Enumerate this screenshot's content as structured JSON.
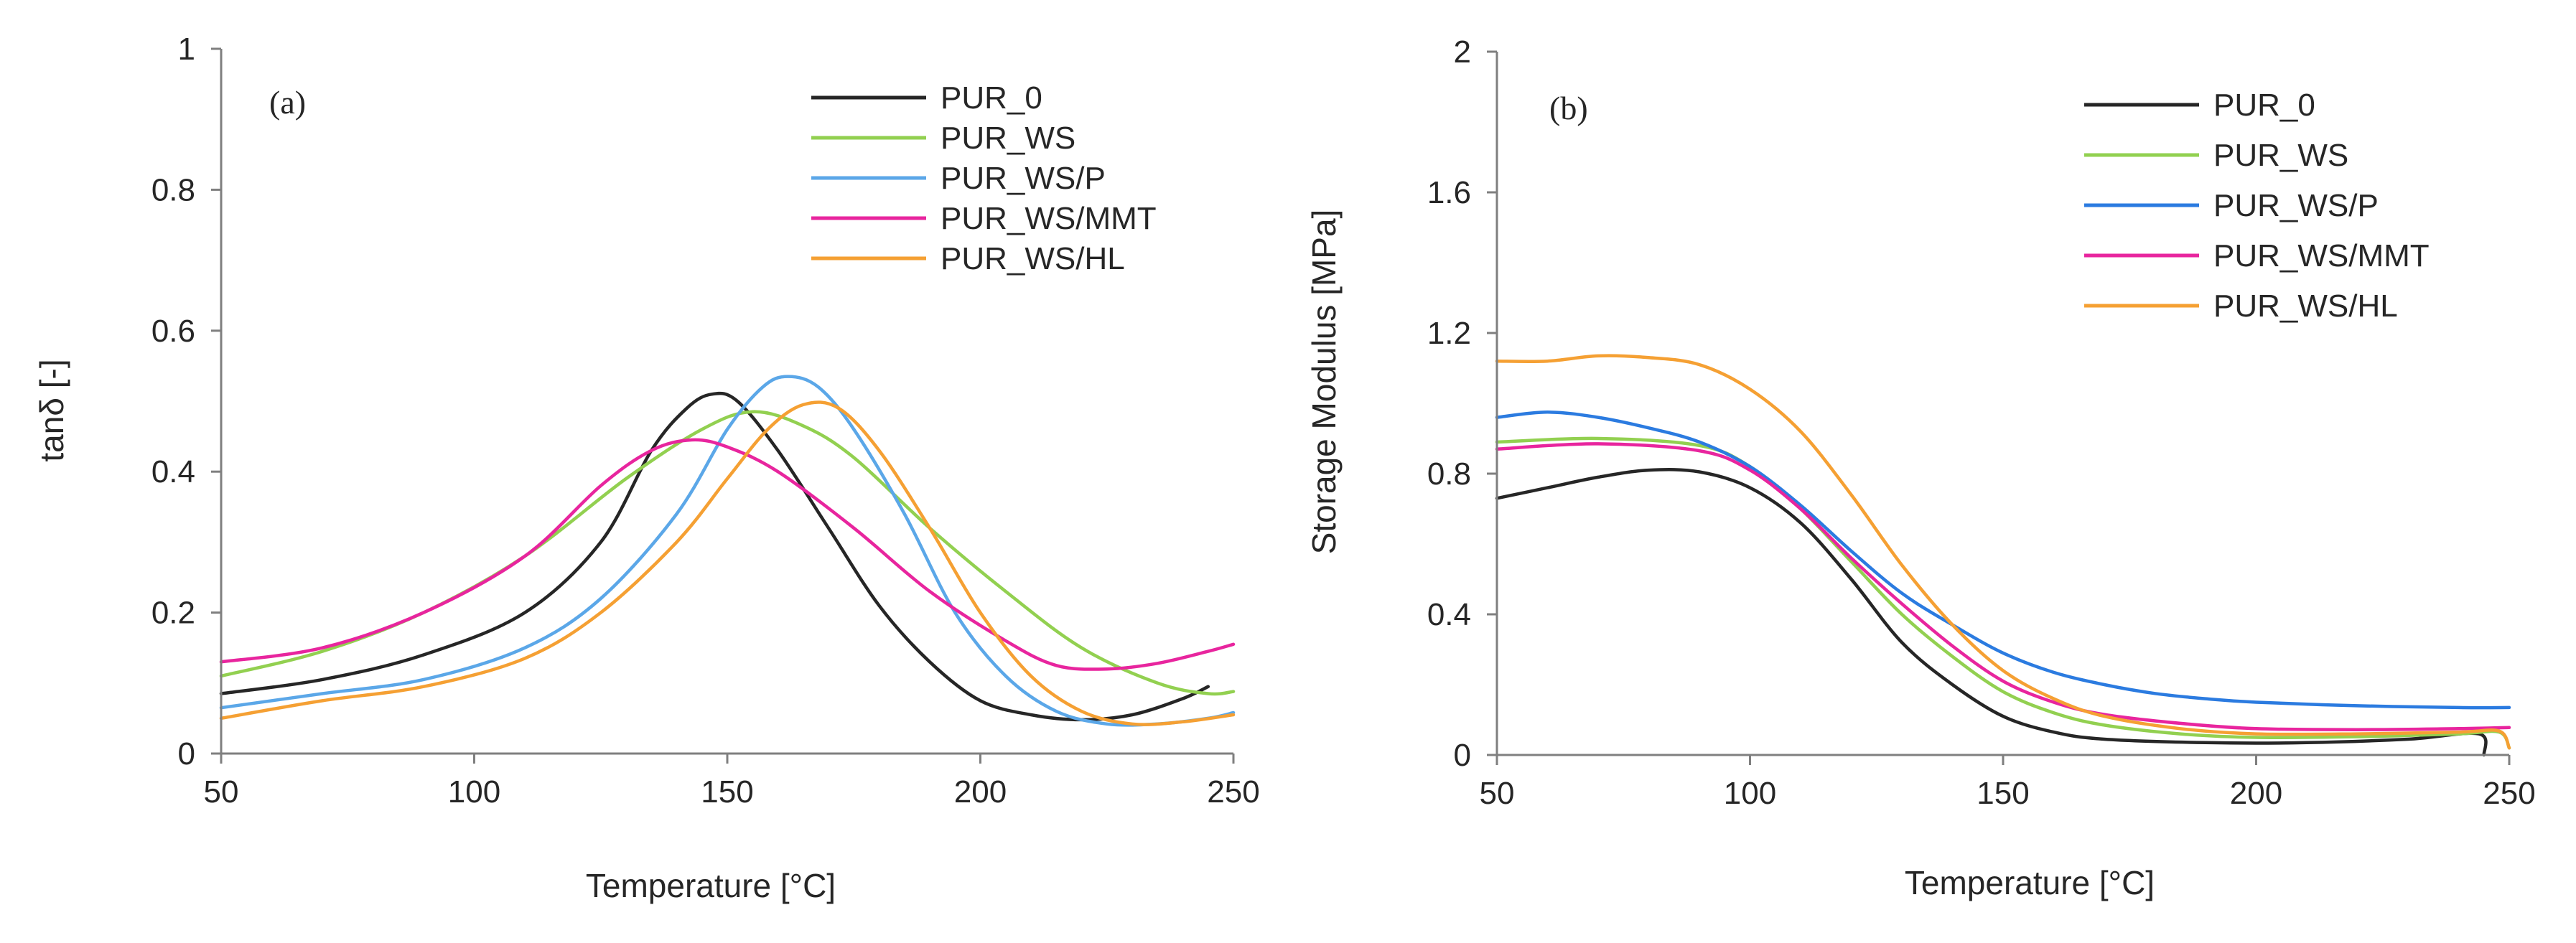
{
  "chart_data": [
    {
      "type": "line",
      "panel_label": "(a)",
      "title": "",
      "xlabel": "Temperature [°C]",
      "ylabel": "tanδ [-]",
      "xlim": [
        50,
        250
      ],
      "ylim": [
        0,
        1
      ],
      "x_ticks": [
        "50",
        "100",
        "150",
        "200",
        "250"
      ],
      "y_ticks": [
        "0",
        "0.2",
        "0.4",
        "0.6",
        "0.8",
        "1"
      ],
      "grid": false,
      "legend_position": "top-right",
      "series": [
        {
          "name": "PUR_0",
          "color": "#262626",
          "points": [
            [
              50,
              0.085
            ],
            [
              70,
              0.105
            ],
            [
              90,
              0.14
            ],
            [
              110,
              0.2
            ],
            [
              125,
              0.3
            ],
            [
              135,
              0.43
            ],
            [
              142,
              0.49
            ],
            [
              147,
              0.51
            ],
            [
              152,
              0.5
            ],
            [
              160,
              0.43
            ],
            [
              170,
              0.32
            ],
            [
              180,
              0.21
            ],
            [
              190,
              0.13
            ],
            [
              200,
              0.075
            ],
            [
              210,
              0.055
            ],
            [
              220,
              0.048
            ],
            [
              230,
              0.055
            ],
            [
              240,
              0.078
            ],
            [
              245,
              0.095
            ]
          ]
        },
        {
          "name": "PUR_WS",
          "color": "#92D050",
          "points": [
            [
              50,
              0.11
            ],
            [
              70,
              0.145
            ],
            [
              90,
              0.2
            ],
            [
              110,
              0.28
            ],
            [
              130,
              0.39
            ],
            [
              145,
              0.46
            ],
            [
              155,
              0.485
            ],
            [
              165,
              0.465
            ],
            [
              175,
              0.42
            ],
            [
              190,
              0.32
            ],
            [
              205,
              0.23
            ],
            [
              220,
              0.15
            ],
            [
              235,
              0.1
            ],
            [
              245,
              0.085
            ],
            [
              250,
              0.088
            ]
          ]
        },
        {
          "name": "PUR_WS/P",
          "color": "#5BA7E8",
          "points": [
            [
              50,
              0.065
            ],
            [
              70,
              0.085
            ],
            [
              90,
              0.105
            ],
            [
              110,
              0.15
            ],
            [
              125,
              0.22
            ],
            [
              140,
              0.34
            ],
            [
              150,
              0.46
            ],
            [
              157,
              0.52
            ],
            [
              162,
              0.535
            ],
            [
              168,
              0.52
            ],
            [
              175,
              0.46
            ],
            [
              185,
              0.34
            ],
            [
              195,
              0.2
            ],
            [
              205,
              0.11
            ],
            [
              215,
              0.06
            ],
            [
              225,
              0.042
            ],
            [
              235,
              0.042
            ],
            [
              245,
              0.05
            ],
            [
              250,
              0.058
            ]
          ]
        },
        {
          "name": "PUR_WS/MMT",
          "color": "#E8259E",
          "points": [
            [
              50,
              0.13
            ],
            [
              70,
              0.15
            ],
            [
              90,
              0.2
            ],
            [
              110,
              0.28
            ],
            [
              125,
              0.38
            ],
            [
              135,
              0.43
            ],
            [
              143,
              0.445
            ],
            [
              150,
              0.435
            ],
            [
              160,
              0.4
            ],
            [
              175,
              0.32
            ],
            [
              190,
              0.23
            ],
            [
              205,
              0.16
            ],
            [
              215,
              0.125
            ],
            [
              225,
              0.12
            ],
            [
              235,
              0.128
            ],
            [
              245,
              0.145
            ],
            [
              250,
              0.155
            ]
          ]
        },
        {
          "name": "PUR_WS/HL",
          "color": "#F5A033",
          "points": [
            [
              50,
              0.05
            ],
            [
              70,
              0.075
            ],
            [
              90,
              0.095
            ],
            [
              110,
              0.135
            ],
            [
              125,
              0.2
            ],
            [
              140,
              0.3
            ],
            [
              150,
              0.39
            ],
            [
              158,
              0.46
            ],
            [
              165,
              0.495
            ],
            [
              172,
              0.49
            ],
            [
              180,
              0.43
            ],
            [
              190,
              0.32
            ],
            [
              200,
              0.2
            ],
            [
              210,
              0.11
            ],
            [
              220,
              0.06
            ],
            [
              230,
              0.042
            ],
            [
              240,
              0.045
            ],
            [
              250,
              0.055
            ]
          ]
        }
      ]
    },
    {
      "type": "line",
      "panel_label": "(b)",
      "title": "",
      "xlabel": "Temperature [°C]",
      "ylabel": "Storage Modulus [MPa]",
      "xlim": [
        50,
        250
      ],
      "ylim": [
        0,
        2
      ],
      "x_ticks": [
        "50",
        "100",
        "150",
        "200",
        "250"
      ],
      "y_ticks": [
        "0",
        "0.4",
        "0.8",
        "1.2",
        "1.6",
        "2"
      ],
      "grid": false,
      "legend_position": "top-right",
      "series": [
        {
          "name": "PUR_0",
          "color": "#262626",
          "points": [
            [
              50,
              0.73
            ],
            [
              60,
              0.76
            ],
            [
              70,
              0.79
            ],
            [
              80,
              0.81
            ],
            [
              90,
              0.805
            ],
            [
              100,
              0.76
            ],
            [
              110,
              0.66
            ],
            [
              120,
              0.5
            ],
            [
              130,
              0.32
            ],
            [
              140,
              0.2
            ],
            [
              150,
              0.11
            ],
            [
              160,
              0.065
            ],
            [
              170,
              0.045
            ],
            [
              190,
              0.035
            ],
            [
              210,
              0.035
            ],
            [
              230,
              0.045
            ],
            [
              244,
              0.06
            ],
            [
              245,
              0.0
            ]
          ]
        },
        {
          "name": "PUR_WS",
          "color": "#92D050",
          "points": [
            [
              50,
              0.89
            ],
            [
              70,
              0.9
            ],
            [
              90,
              0.88
            ],
            [
              100,
              0.82
            ],
            [
              110,
              0.7
            ],
            [
              120,
              0.55
            ],
            [
              130,
              0.4
            ],
            [
              140,
              0.28
            ],
            [
              150,
              0.18
            ],
            [
              160,
              0.12
            ],
            [
              170,
              0.085
            ],
            [
              185,
              0.06
            ],
            [
              200,
              0.05
            ],
            [
              220,
              0.052
            ],
            [
              240,
              0.06
            ],
            [
              248,
              0.065
            ],
            [
              250,
              0.02
            ]
          ]
        },
        {
          "name": "PUR_WS/P",
          "color": "#2B7BE0",
          "points": [
            [
              50,
              0.96
            ],
            [
              60,
              0.975
            ],
            [
              70,
              0.96
            ],
            [
              80,
              0.93
            ],
            [
              90,
              0.89
            ],
            [
              100,
              0.82
            ],
            [
              110,
              0.71
            ],
            [
              120,
              0.58
            ],
            [
              130,
              0.46
            ],
            [
              140,
              0.37
            ],
            [
              150,
              0.29
            ],
            [
              160,
              0.235
            ],
            [
              170,
              0.2
            ],
            [
              180,
              0.175
            ],
            [
              190,
              0.16
            ],
            [
              200,
              0.15
            ],
            [
              220,
              0.14
            ],
            [
              240,
              0.135
            ],
            [
              250,
              0.135
            ]
          ]
        },
        {
          "name": "PUR_WS/MMT",
          "color": "#E8259E",
          "points": [
            [
              50,
              0.87
            ],
            [
              70,
              0.885
            ],
            [
              90,
              0.865
            ],
            [
              100,
              0.81
            ],
            [
              110,
              0.7
            ],
            [
              120,
              0.56
            ],
            [
              130,
              0.43
            ],
            [
              140,
              0.31
            ],
            [
              150,
              0.21
            ],
            [
              160,
              0.15
            ],
            [
              170,
              0.115
            ],
            [
              185,
              0.09
            ],
            [
              200,
              0.075
            ],
            [
              220,
              0.072
            ],
            [
              240,
              0.075
            ],
            [
              250,
              0.078
            ]
          ]
        },
        {
          "name": "PUR_WS/HL",
          "color": "#F5A033",
          "points": [
            [
              50,
              1.12
            ],
            [
              60,
              1.12
            ],
            [
              70,
              1.135
            ],
            [
              80,
              1.13
            ],
            [
              90,
              1.11
            ],
            [
              100,
              1.04
            ],
            [
              110,
              0.92
            ],
            [
              120,
              0.74
            ],
            [
              130,
              0.54
            ],
            [
              140,
              0.37
            ],
            [
              150,
              0.24
            ],
            [
              160,
              0.16
            ],
            [
              170,
              0.11
            ],
            [
              185,
              0.075
            ],
            [
              200,
              0.06
            ],
            [
              220,
              0.06
            ],
            [
              240,
              0.065
            ],
            [
              248,
              0.068
            ],
            [
              250,
              0.02
            ]
          ]
        }
      ]
    }
  ]
}
